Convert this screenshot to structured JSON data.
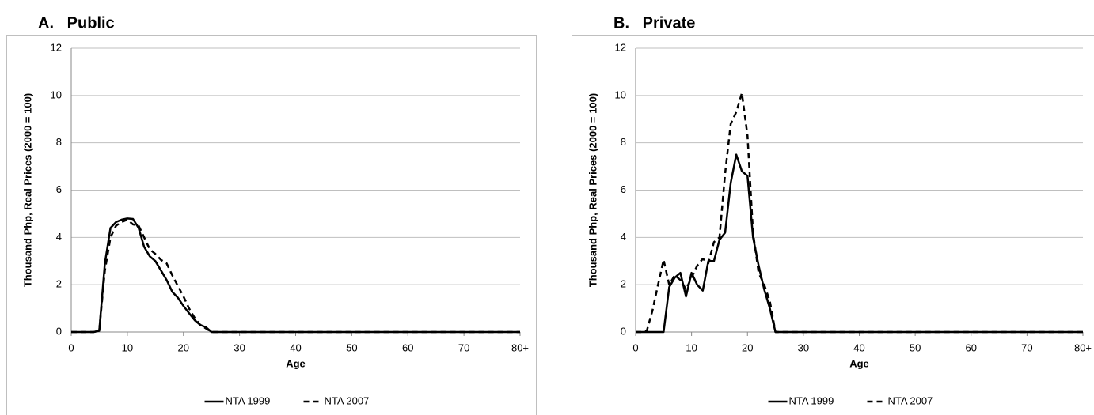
{
  "chart_data": [
    {
      "type": "line",
      "title": "A.   Public",
      "xlabel": "Age",
      "ylabel": "Thousand Php, Real Prices (2000 = 100)",
      "x": [
        0,
        1,
        2,
        3,
        4,
        5,
        6,
        7,
        8,
        9,
        10,
        11,
        12,
        13,
        14,
        15,
        16,
        17,
        18,
        19,
        20,
        21,
        22,
        23,
        24,
        25,
        26,
        27,
        28,
        29,
        30,
        31,
        32,
        33,
        34,
        35,
        36,
        37,
        38,
        39,
        40,
        41,
        42,
        43,
        44,
        45,
        46,
        47,
        48,
        49,
        50,
        51,
        52,
        53,
        54,
        55,
        56,
        57,
        58,
        59,
        60,
        61,
        62,
        63,
        64,
        65,
        66,
        67,
        68,
        69,
        70,
        71,
        72,
        73,
        74,
        75,
        76,
        77,
        78,
        79,
        80
      ],
      "xlim": [
        0,
        80
      ],
      "xticks": [
        0,
        10,
        20,
        30,
        40,
        50,
        60,
        70,
        {
          "value": 80,
          "label": "80+"
        }
      ],
      "ylim": [
        0,
        12
      ],
      "yticks": [
        0,
        2,
        4,
        6,
        8,
        10,
        12
      ],
      "grid": true,
      "legend": "bottom",
      "series": [
        {
          "name": "NTA 1999",
          "color": "#000000",
          "line_style": "solid",
          "values": [
            0,
            0,
            0,
            0,
            0,
            0.05,
            2.9,
            4.4,
            4.65,
            4.75,
            4.8,
            4.78,
            4.4,
            3.6,
            3.2,
            3.0,
            2.6,
            2.2,
            1.7,
            1.45,
            1.1,
            0.8,
            0.5,
            0.3,
            0.2,
            0,
            0,
            0,
            0,
            0,
            0,
            0,
            0,
            0,
            0,
            0,
            0,
            0,
            0,
            0,
            0,
            0,
            0,
            0,
            0,
            0,
            0,
            0,
            0,
            0,
            0,
            0,
            0,
            0,
            0,
            0,
            0,
            0,
            0,
            0,
            0,
            0,
            0,
            0,
            0,
            0,
            0,
            0,
            0,
            0,
            0,
            0,
            0,
            0,
            0,
            0,
            0,
            0,
            0,
            0,
            0
          ]
        },
        {
          "name": "NTA 2007",
          "color": "#000000",
          "line_style": "dashed",
          "values": [
            0,
            0,
            0,
            0,
            0,
            0.05,
            2.6,
            4.0,
            4.5,
            4.65,
            4.75,
            4.55,
            4.5,
            4.0,
            3.5,
            3.3,
            3.05,
            2.9,
            2.4,
            1.95,
            1.5,
            1.0,
            0.6,
            0.3,
            0.15,
            0,
            0,
            0,
            0,
            0,
            0,
            0,
            0,
            0,
            0,
            0,
            0,
            0,
            0,
            0,
            0,
            0,
            0,
            0,
            0,
            0,
            0,
            0,
            0,
            0,
            0,
            0,
            0,
            0,
            0,
            0,
            0,
            0,
            0,
            0,
            0,
            0,
            0,
            0,
            0,
            0,
            0,
            0,
            0,
            0,
            0,
            0,
            0,
            0,
            0,
            0,
            0,
            0,
            0,
            0,
            0
          ]
        }
      ]
    },
    {
      "type": "line",
      "title": "B.   Private",
      "xlabel": "Age",
      "ylabel": "Thousand Php, Real Prices (2000 = 100)",
      "x": [
        0,
        1,
        2,
        3,
        4,
        5,
        6,
        7,
        8,
        9,
        10,
        11,
        12,
        13,
        14,
        15,
        16,
        17,
        18,
        19,
        20,
        21,
        22,
        23,
        24,
        25,
        26,
        27,
        28,
        29,
        30,
        31,
        32,
        33,
        34,
        35,
        36,
        37,
        38,
        39,
        40,
        41,
        42,
        43,
        44,
        45,
        46,
        47,
        48,
        49,
        50,
        51,
        52,
        53,
        54,
        55,
        56,
        57,
        58,
        59,
        60,
        61,
        62,
        63,
        64,
        65,
        66,
        67,
        68,
        69,
        70,
        71,
        72,
        73,
        74,
        75,
        76,
        77,
        78,
        79,
        80
      ],
      "xlim": [
        0,
        80
      ],
      "xticks": [
        0,
        10,
        20,
        30,
        40,
        50,
        60,
        70,
        {
          "value": 80,
          "label": "80+"
        }
      ],
      "ylim": [
        0,
        12
      ],
      "yticks": [
        0,
        2,
        4,
        6,
        8,
        10,
        12
      ],
      "grid": true,
      "legend": "bottom",
      "series": [
        {
          "name": "NTA 1999",
          "color": "#000000",
          "line_style": "solid",
          "values": [
            0,
            0,
            0,
            0,
            0,
            0,
            1.9,
            2.3,
            2.5,
            1.5,
            2.5,
            2.0,
            1.75,
            3.0,
            3.0,
            3.9,
            4.2,
            6.3,
            7.5,
            6.8,
            6.6,
            4.0,
            2.8,
            1.8,
            1.0,
            0,
            0,
            0,
            0,
            0,
            0,
            0,
            0,
            0,
            0,
            0,
            0,
            0,
            0,
            0,
            0,
            0,
            0,
            0,
            0,
            0,
            0,
            0,
            0,
            0,
            0,
            0,
            0,
            0,
            0,
            0,
            0,
            0,
            0,
            0,
            0,
            0,
            0,
            0,
            0,
            0,
            0,
            0,
            0,
            0,
            0,
            0,
            0,
            0,
            0,
            0,
            0,
            0,
            0,
            0,
            0
          ]
        },
        {
          "name": "NTA 2007",
          "color": "#000000",
          "line_style": "dashed",
          "values": [
            0,
            0,
            0.05,
            0.9,
            2.0,
            3.05,
            2.0,
            2.4,
            2.2,
            1.8,
            2.3,
            2.8,
            3.1,
            2.9,
            3.8,
            4.0,
            6.7,
            8.8,
            9.3,
            10.1,
            8.3,
            4.2,
            2.5,
            2.0,
            1.3,
            0,
            0,
            0,
            0,
            0,
            0,
            0,
            0,
            0,
            0,
            0,
            0,
            0,
            0,
            0,
            0,
            0,
            0,
            0,
            0,
            0,
            0,
            0,
            0,
            0,
            0,
            0,
            0,
            0,
            0,
            0,
            0,
            0,
            0,
            0,
            0,
            0,
            0,
            0,
            0,
            0,
            0,
            0,
            0,
            0,
            0,
            0,
            0,
            0,
            0,
            0,
            0,
            0,
            0,
            0,
            0
          ]
        }
      ]
    }
  ]
}
